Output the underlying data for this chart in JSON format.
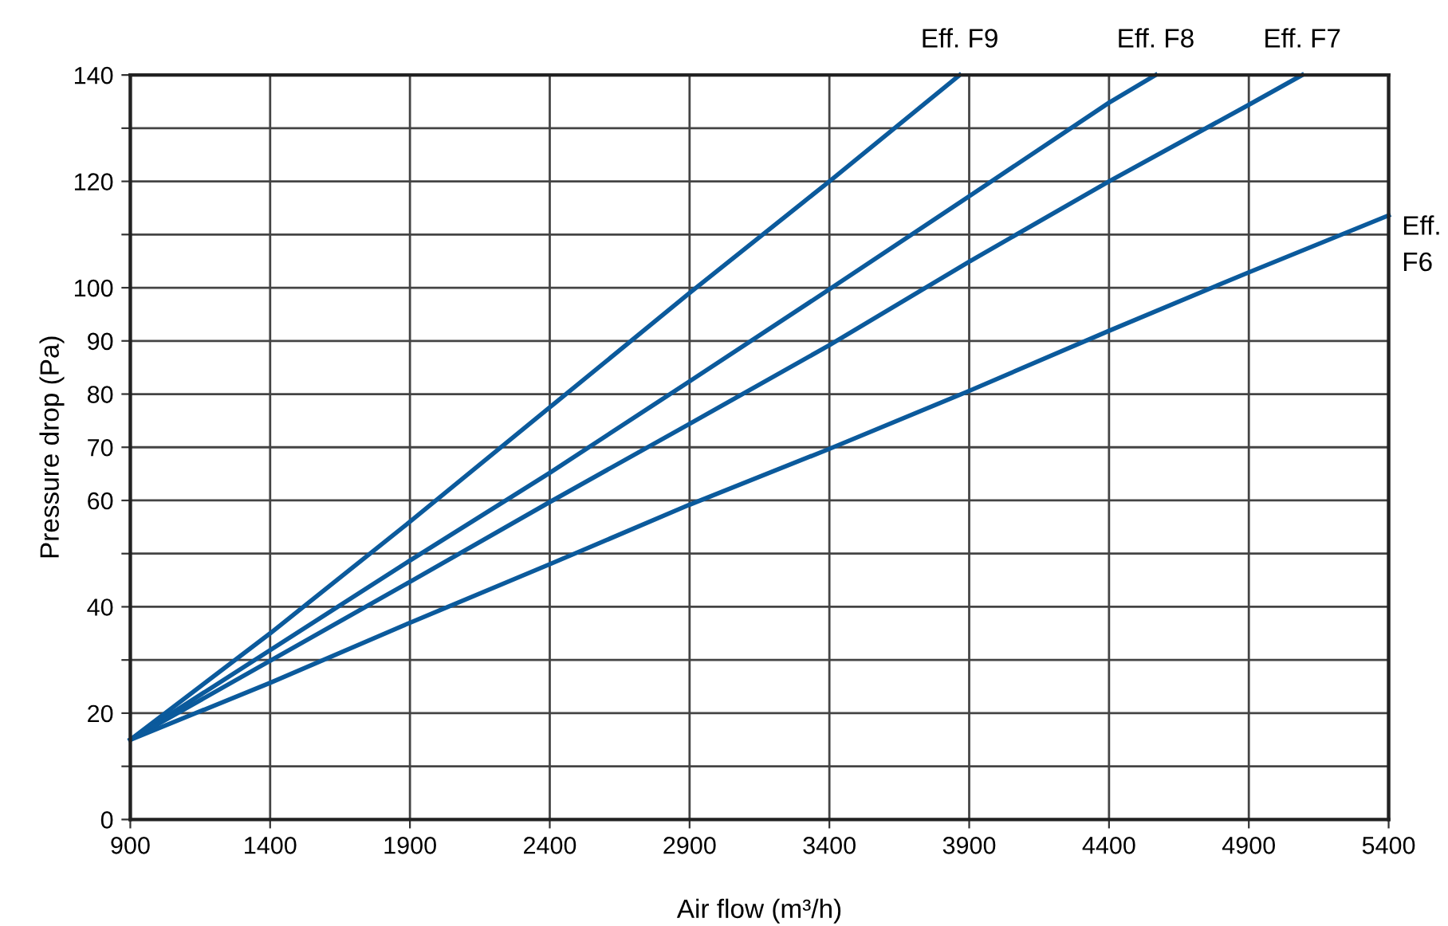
{
  "chart_data": {
    "type": "line",
    "xlabel": "Air flow (m³/h)",
    "ylabel": "Pressure drop (Pa)",
    "xlim": [
      900,
      5400
    ],
    "xticks": [
      900,
      1400,
      1900,
      2400,
      2900,
      3400,
      3900,
      4400,
      4900,
      5400
    ],
    "ylim": [
      0,
      140
    ],
    "yticks": [
      0,
      {
        "value": 10,
        "label": null
      },
      20,
      {
        "value": 30,
        "label": null
      },
      40,
      {
        "value": 50,
        "label": null
      },
      60,
      70,
      80,
      90,
      100,
      {
        "value": 110,
        "label": null
      },
      120,
      {
        "value": 130,
        "label": null
      },
      140
    ],
    "grid": true,
    "marker": "none",
    "line_style": "solid",
    "series": [
      {
        "name": "Eff. F9",
        "color": "#0b5a9c",
        "x": [
          900,
          1400,
          1900,
          2400,
          2900,
          3400,
          3866
        ],
        "values": [
          15,
          35,
          56,
          77.5,
          99,
          120,
          140
        ]
      },
      {
        "name": "Eff. F8",
        "color": "#0b5a9c",
        "x": [
          900,
          1900,
          2400,
          2900,
          3400,
          3900,
          4400,
          4567
        ],
        "values": [
          15,
          48.7,
          65.2,
          82.4,
          99.7,
          117.2,
          134.8,
          140
        ]
      },
      {
        "name": "Eff. F7",
        "color": "#0b5a9c",
        "x": [
          900,
          1900,
          2400,
          2900,
          3400,
          3900,
          4400,
          4900,
          5091
        ],
        "values": [
          15,
          44.7,
          59.7,
          74.4,
          89.2,
          104.9,
          120,
          134.4,
          140
        ]
      },
      {
        "name": "Eff. F6",
        "color": "#0b5a9c",
        "x": [
          900,
          1400,
          1900,
          2400,
          2900,
          3400,
          3900,
          4400,
          4900,
          5400
        ],
        "values": [
          15,
          25.7,
          37,
          48,
          59.2,
          69.7,
          80.6,
          91.9,
          102.9,
          113.6
        ]
      }
    ]
  }
}
